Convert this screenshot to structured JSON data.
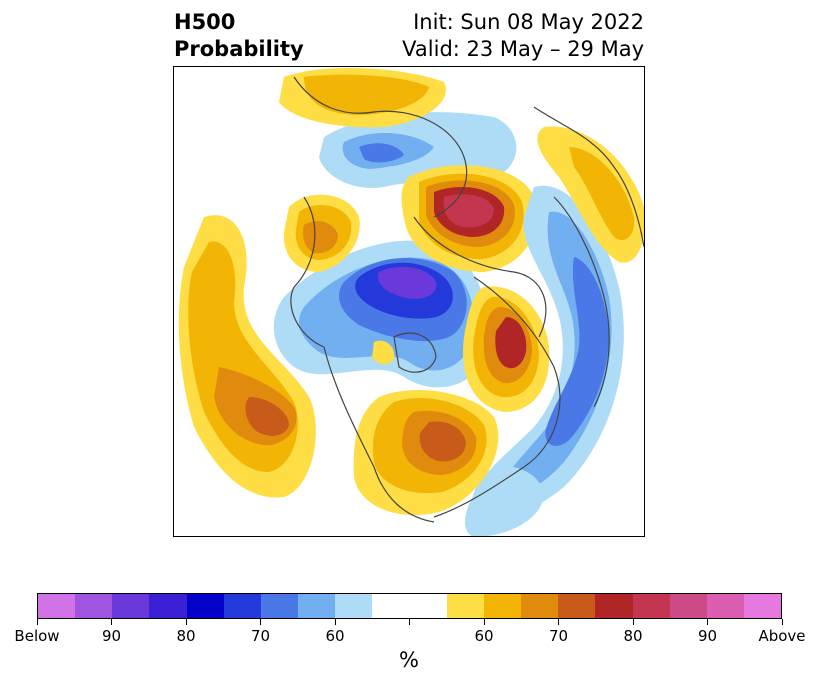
{
  "header": {
    "variable": "H500",
    "product": "Probability",
    "init": "Init: Sun 08 May 2022",
    "valid": "Valid: 23 May – 29 May"
  },
  "colorbar": {
    "colors": [
      "#d173e6",
      "#9f55e0",
      "#6b38d9",
      "#3a1fd4",
      "#0202c9",
      "#2339d9",
      "#4a78e6",
      "#72aff0",
      "#aedcf7",
      "#ffffff",
      "#ffffff",
      "#ffdd45",
      "#f2b405",
      "#e08b0e",
      "#c85a1a",
      "#b02525",
      "#c43550",
      "#cc4a86",
      "#db5eb2",
      "#e679e0"
    ],
    "tick_labels": [
      "Below",
      "90",
      "80",
      "70",
      "60",
      "",
      "60",
      "70",
      "80",
      "90",
      "Above"
    ],
    "unit": "%"
  },
  "map": {
    "projection": "north-polar-stereographic",
    "field": "500 hPa height tercile probability",
    "colors": {
      "blue_60": "#aedcf7",
      "blue_70": "#72aff0",
      "blue_80": "#4a78e6",
      "blue_90": "#2339d9",
      "purple_90": "#3a1fd4",
      "purple_95": "#6b38d9",
      "yellow_60": "#ffdd45",
      "orange_70": "#f2b405",
      "orange_80": "#e08b0e",
      "brown_90": "#c85a1a",
      "red_90": "#b02525",
      "crimson": "#c43550"
    }
  }
}
